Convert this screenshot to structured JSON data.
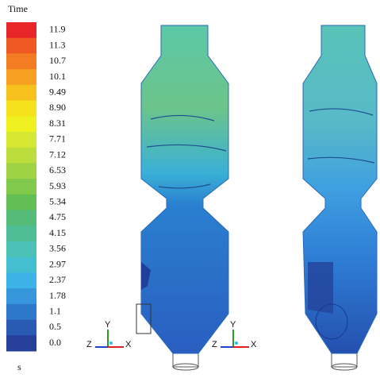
{
  "legend": {
    "title": "Time",
    "unit": "s",
    "labels": [
      "11.9",
      "11.3",
      "10.7",
      "10.1",
      "9.49",
      "8.90",
      "8.31",
      "7.71",
      "7.12",
      "6.53",
      "5.93",
      "5.34",
      "4.75",
      "4.15",
      "3.56",
      "2.97",
      "2.37",
      "1.78",
      "1.1",
      "0.5",
      "0.0"
    ],
    "colors": [
      "#e8262a",
      "#ef5a24",
      "#f37d22",
      "#f6a121",
      "#f7c21e",
      "#f6e11d",
      "#eef01f",
      "#d6e834",
      "#bcde3c",
      "#9fd344",
      "#80c94a",
      "#62bf56",
      "#55bb78",
      "#4fbd96",
      "#4cc1b5",
      "#44bfd2",
      "#3cb3e6",
      "#3596dc",
      "#2d78c8",
      "#2a5bb2",
      "#263f98"
    ]
  },
  "triads": [
    {
      "y": "Y",
      "z": "Z",
      "x": "X"
    },
    {
      "y": "Y",
      "z": "Z",
      "x": "X"
    }
  ]
}
